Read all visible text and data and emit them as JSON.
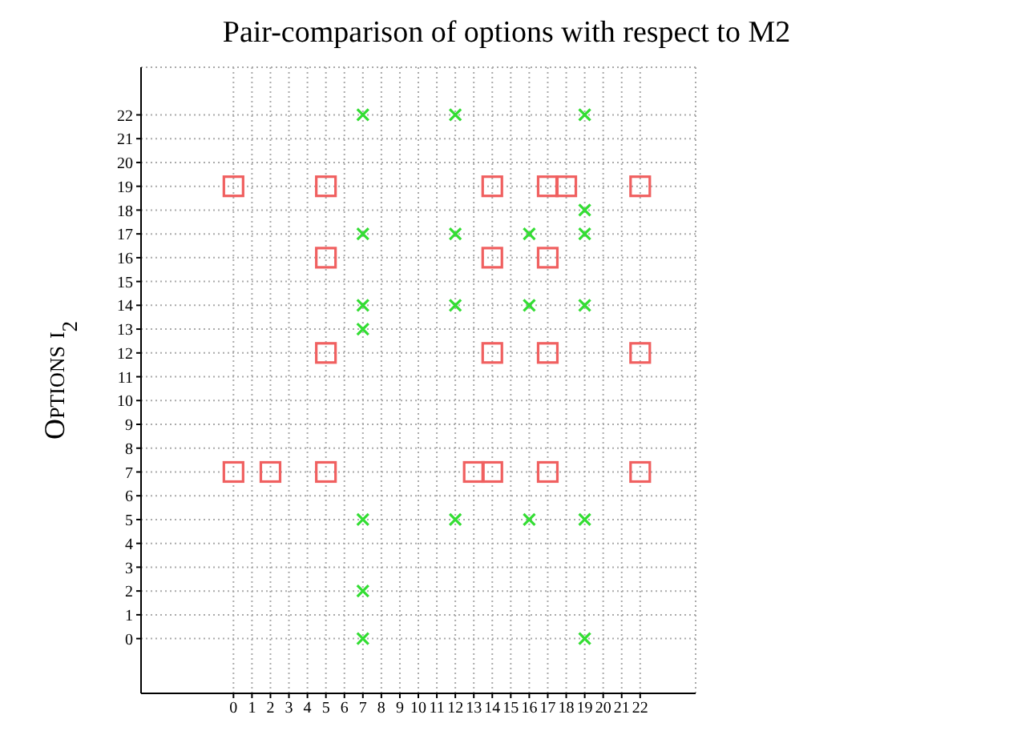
{
  "chart_data": {
    "type": "scatter",
    "title": "Pair-comparison of options with respect to M2",
    "ylabel": "Options i$_{2}$",
    "xlim": [
      -5,
      25
    ],
    "ylim": [
      -2.3,
      24
    ],
    "xticks": [
      0,
      1,
      2,
      3,
      4,
      5,
      6,
      7,
      8,
      9,
      10,
      11,
      12,
      13,
      14,
      15,
      16,
      17,
      18,
      19,
      20,
      21,
      22
    ],
    "yticks": [
      0,
      1,
      2,
      3,
      4,
      5,
      6,
      7,
      8,
      9,
      10,
      11,
      12,
      13,
      14,
      15,
      16,
      17,
      18,
      19,
      20,
      21,
      22
    ],
    "grid": true,
    "legend": false,
    "series": [
      {
        "color": "#f06060",
        "marker": "square",
        "x": [
          0,
          5,
          14,
          17,
          18,
          22,
          5,
          14,
          17,
          5,
          14,
          17,
          22,
          0,
          2,
          5,
          13,
          14,
          17,
          22
        ],
        "values": [
          19,
          19,
          19,
          19,
          19,
          19,
          16,
          16,
          16,
          12,
          12,
          12,
          12,
          7,
          7,
          7,
          7,
          7,
          7,
          7
        ]
      },
      {
        "color": "#33dd33",
        "marker": "cross",
        "x": [
          7,
          12,
          19,
          19,
          7,
          12,
          16,
          19,
          7,
          12,
          16,
          19,
          7,
          7,
          12,
          16,
          19,
          7,
          7,
          19
        ],
        "values": [
          22,
          22,
          22,
          18,
          17,
          17,
          17,
          17,
          14,
          14,
          14,
          14,
          13,
          5,
          5,
          5,
          5,
          2,
          0,
          0
        ]
      }
    ]
  }
}
